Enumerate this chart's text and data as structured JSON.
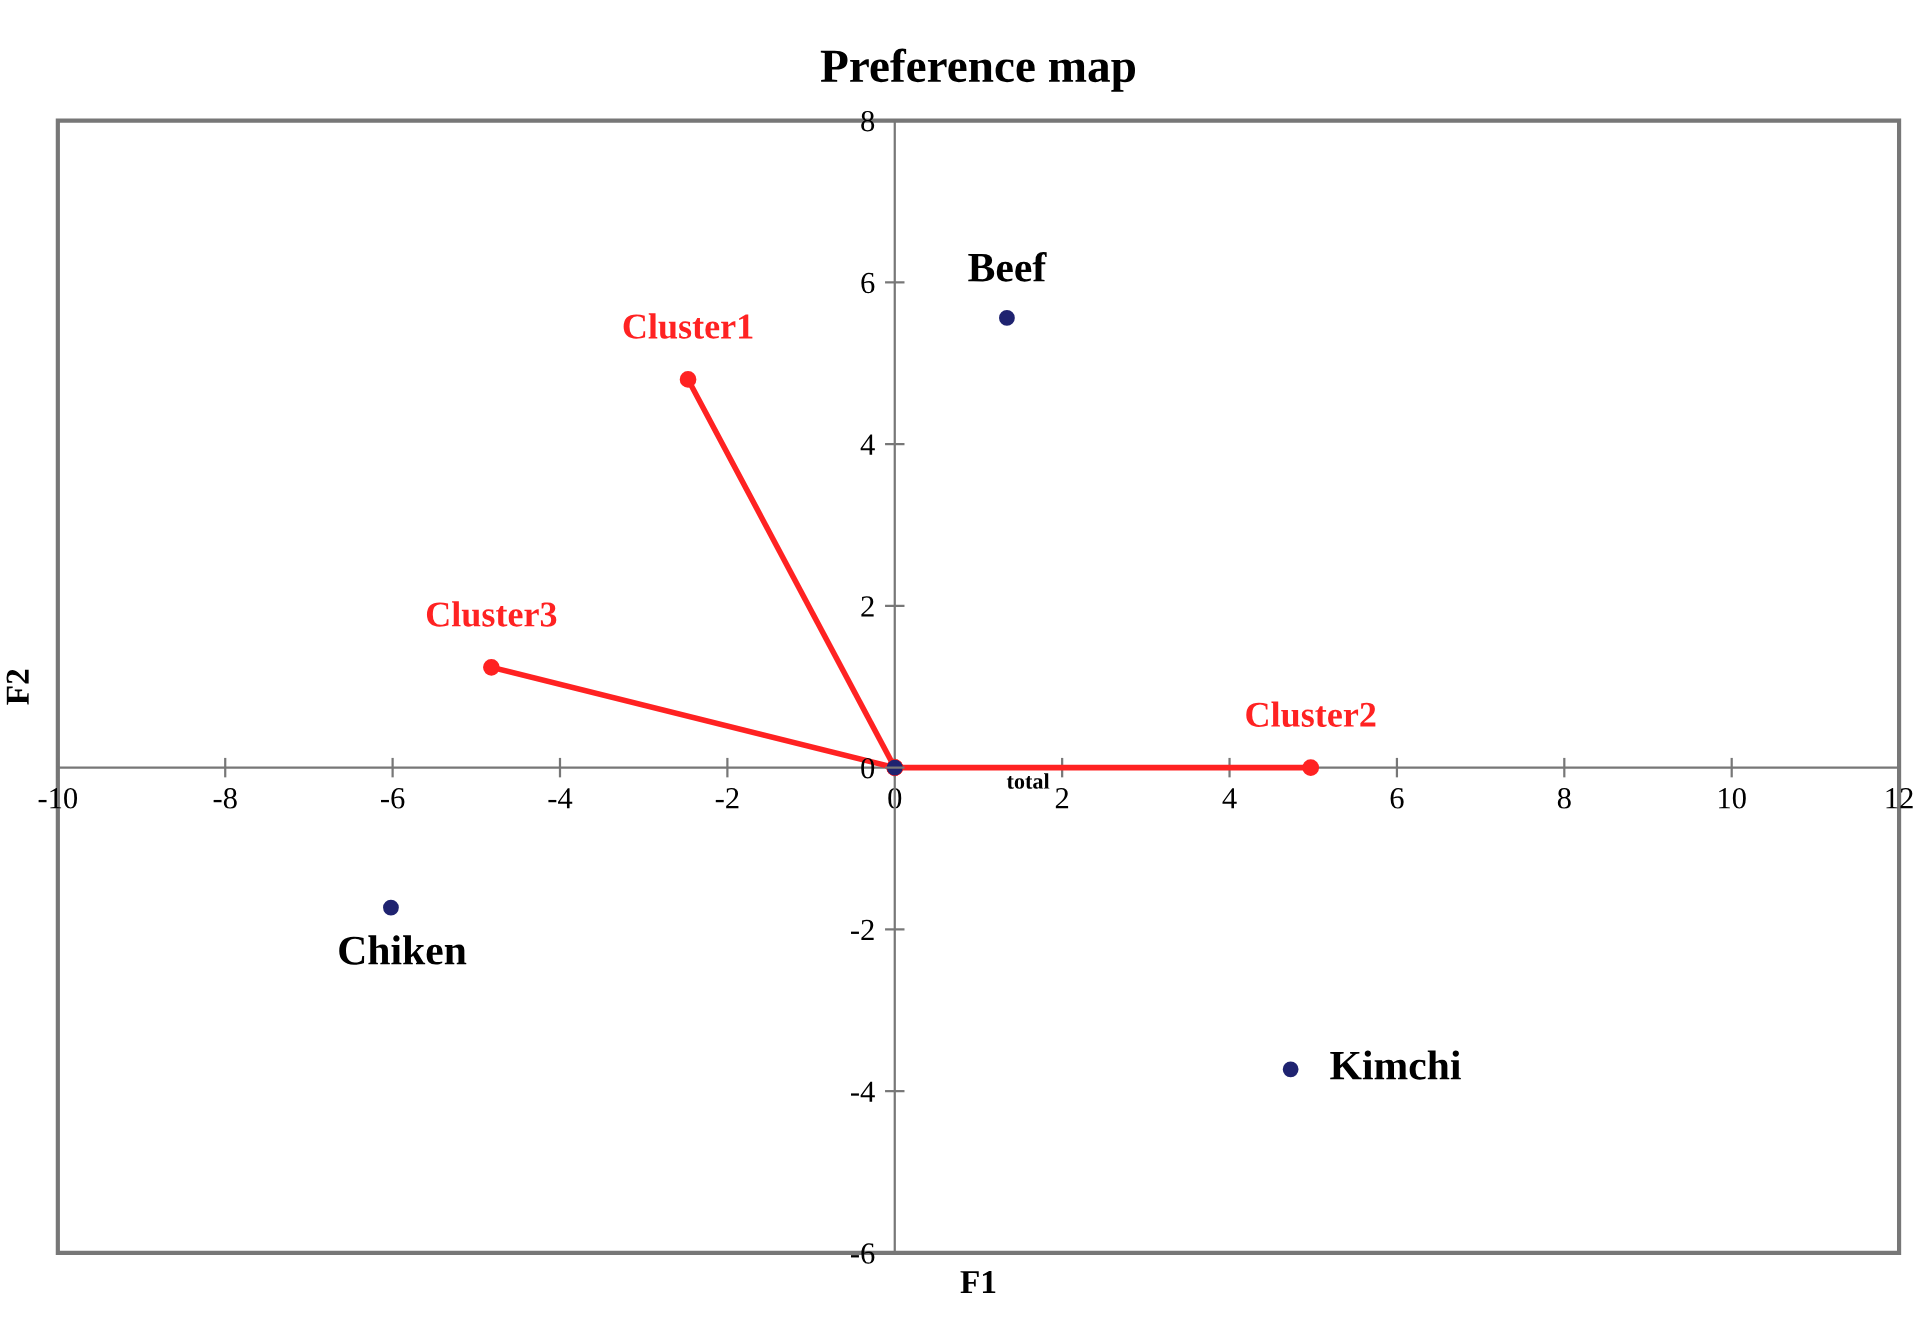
{
  "chart_data": {
    "type": "scatter",
    "title": "Preference map",
    "xlabel": "F1",
    "ylabel": "F2",
    "xlim": [
      -10,
      12
    ],
    "ylim": [
      -6,
      8
    ],
    "xticks": [
      -10,
      -8,
      -6,
      -4,
      -2,
      0,
      2,
      4,
      6,
      8,
      10,
      12
    ],
    "yticks": [
      -6,
      -4,
      -2,
      0,
      2,
      4,
      6,
      8
    ],
    "grid": false,
    "legend": false,
    "marker": "circle",
    "series": [
      {
        "color": "#1f2370",
        "x": [
          1.34,
          -6.02,
          4.73,
          0
        ],
        "values": [
          5.56,
          -1.73,
          -3.73,
          0
        ]
      },
      {
        "type": "line",
        "name": "Cluster1",
        "color": "#ff2222",
        "x": [
          0,
          -2.47
        ],
        "values": [
          0,
          4.8
        ]
      },
      {
        "type": "line",
        "name": "Cluster2",
        "color": "#ff2222",
        "x": [
          0,
          4.97
        ],
        "values": [
          0,
          0
        ]
      },
      {
        "type": "line",
        "name": "Cluster3",
        "color": "#ff2222",
        "x": [
          0,
          -4.82
        ],
        "values": [
          0,
          1.24
        ]
      }
    ],
    "annotations": [
      {
        "text": "Beef",
        "x": 1.34,
        "y": 5.56
      },
      {
        "text": "Chiken",
        "x": -6.02,
        "y": -1.73
      },
      {
        "text": "Kimchi",
        "x": 4.73,
        "y": -3.73
      },
      "total"
    ]
  }
}
